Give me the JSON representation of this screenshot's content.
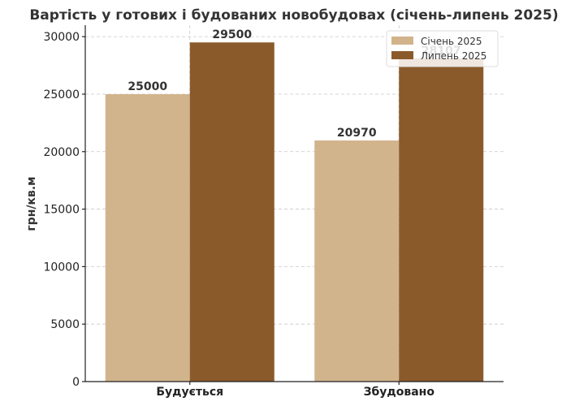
{
  "chart_data": {
    "type": "bar",
    "title": "Вартість у готових і будованих новобудовах (січень-липень 2025)",
    "xlabel": "",
    "ylabel": "грн/кв.м",
    "categories": [
      "Будується",
      "Збудовано"
    ],
    "series": [
      {
        "name": "Січень 2025",
        "values": [
          25000,
          20970
        ],
        "color": "#d2b48c"
      },
      {
        "name": "Липень 2025",
        "values": [
          29500,
          28107
        ],
        "color": "#8b5a2b"
      }
    ],
    "ylim": [
      0,
      31000
    ],
    "yticks": [
      0,
      5000,
      10000,
      15000,
      20000,
      25000,
      30000
    ],
    "grid": true,
    "legend_position": "top-right"
  }
}
